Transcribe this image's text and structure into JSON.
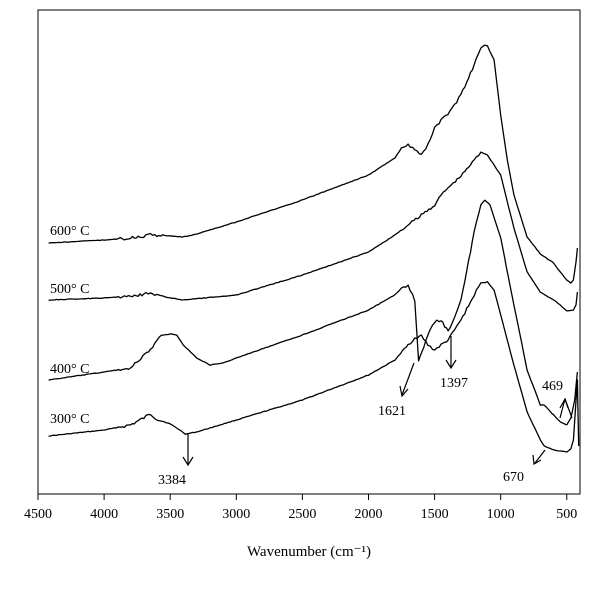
{
  "chart_data": {
    "type": "line",
    "title": "",
    "xlabel": "Wavenumber (cm⁻¹)",
    "ylabel": "",
    "xlim": [
      4500,
      400
    ],
    "x_reversed": true,
    "x_ticks": [
      4500,
      4000,
      3500,
      3000,
      2500,
      2000,
      1500,
      1000,
      500
    ],
    "x_tick_labels": [
      "4500",
      "4000",
      "3500",
      "3000",
      "2500",
      "2000",
      "1500",
      "1000",
      "500"
    ],
    "y_ticks_shown": false,
    "grid": false,
    "legend": "inline labels at left",
    "series": [
      {
        "name": "300° C",
        "points": [
          [
            4420,
            436
          ],
          [
            4000,
            430
          ],
          [
            3800,
            425
          ],
          [
            3700,
            418
          ],
          [
            3650,
            414
          ],
          [
            3600,
            419
          ],
          [
            3500,
            424
          ],
          [
            3450,
            428
          ],
          [
            3384,
            434
          ],
          [
            3300,
            432
          ],
          [
            3000,
            420
          ],
          [
            2500,
            400
          ],
          [
            2000,
            375
          ],
          [
            1800,
            360
          ],
          [
            1700,
            345
          ],
          [
            1650,
            338
          ],
          [
            1600,
            336
          ],
          [
            1550,
            345
          ],
          [
            1500,
            350
          ],
          [
            1450,
            345
          ],
          [
            1397,
            340
          ],
          [
            1300,
            320
          ],
          [
            1200,
            295
          ],
          [
            1150,
            283
          ],
          [
            1100,
            282
          ],
          [
            1050,
            290
          ],
          [
            1000,
            315
          ],
          [
            900,
            365
          ],
          [
            800,
            412
          ],
          [
            700,
            440
          ],
          [
            670,
            446
          ],
          [
            600,
            450
          ],
          [
            550,
            451
          ],
          [
            500,
            452
          ],
          [
            469,
            449
          ],
          [
            450,
            440
          ],
          [
            420,
            380
          ],
          [
            410,
            446
          ]
        ]
      },
      {
        "name": "400° C",
        "points": [
          [
            4420,
            380
          ],
          [
            4000,
            372
          ],
          [
            3800,
            368
          ],
          [
            3750,
            362
          ],
          [
            3650,
            350
          ],
          [
            3600,
            340
          ],
          [
            3550,
            335
          ],
          [
            3500,
            334
          ],
          [
            3450,
            335
          ],
          [
            3400,
            345
          ],
          [
            3300,
            358
          ],
          [
            3200,
            365
          ],
          [
            3100,
            363
          ],
          [
            3000,
            358
          ],
          [
            2500,
            335
          ],
          [
            2000,
            310
          ],
          [
            1800,
            295
          ],
          [
            1750,
            288
          ],
          [
            1700,
            285
          ],
          [
            1650,
            300
          ],
          [
            1621,
            362
          ],
          [
            1600,
            353
          ],
          [
            1550,
            335
          ],
          [
            1500,
            322
          ],
          [
            1450,
            320
          ],
          [
            1397,
            332
          ],
          [
            1300,
            300
          ],
          [
            1200,
            232
          ],
          [
            1150,
            205
          ],
          [
            1120,
            200
          ],
          [
            1080,
            205
          ],
          [
            1000,
            238
          ],
          [
            900,
            305
          ],
          [
            800,
            370
          ],
          [
            700,
            405
          ],
          [
            670,
            405
          ],
          [
            600,
            415
          ],
          [
            550,
            422
          ],
          [
            500,
            425
          ],
          [
            469,
            418
          ],
          [
            440,
            400
          ],
          [
            420,
            372
          ]
        ]
      },
      {
        "name": "500° C",
        "points": [
          [
            4420,
            300
          ],
          [
            4000,
            298
          ],
          [
            3800,
            296
          ],
          [
            3700,
            294
          ],
          [
            3650,
            292
          ],
          [
            3600,
            295
          ],
          [
            3500,
            298
          ],
          [
            3400,
            300
          ],
          [
            3000,
            295
          ],
          [
            2500,
            275
          ],
          [
            2000,
            252
          ],
          [
            1800,
            235
          ],
          [
            1700,
            225
          ],
          [
            1600,
            215
          ],
          [
            1500,
            205
          ],
          [
            1450,
            195
          ],
          [
            1400,
            188
          ],
          [
            1300,
            176
          ],
          [
            1200,
            160
          ],
          [
            1150,
            152
          ],
          [
            1100,
            155
          ],
          [
            1000,
            175
          ],
          [
            900,
            228
          ],
          [
            800,
            272
          ],
          [
            700,
            292
          ],
          [
            600,
            300
          ],
          [
            550,
            305
          ],
          [
            500,
            311
          ],
          [
            450,
            310
          ],
          [
            430,
            305
          ],
          [
            420,
            292
          ]
        ]
      },
      {
        "name": "600° C",
        "points": [
          [
            4420,
            243
          ],
          [
            4000,
            240
          ],
          [
            3800,
            238
          ],
          [
            3700,
            236
          ],
          [
            3650,
            234
          ],
          [
            3600,
            235
          ],
          [
            3500,
            236
          ],
          [
            3400,
            237
          ],
          [
            3300,
            234
          ],
          [
            3000,
            222
          ],
          [
            2500,
            200
          ],
          [
            2000,
            175
          ],
          [
            1800,
            158
          ],
          [
            1750,
            148
          ],
          [
            1700,
            145
          ],
          [
            1650,
            150
          ],
          [
            1600,
            155
          ],
          [
            1550,
            145
          ],
          [
            1500,
            128
          ],
          [
            1450,
            120
          ],
          [
            1400,
            115
          ],
          [
            1350,
            105
          ],
          [
            1300,
            95
          ],
          [
            1200,
            65
          ],
          [
            1150,
            48
          ],
          [
            1120,
            45
          ],
          [
            1100,
            46
          ],
          [
            1050,
            60
          ],
          [
            1000,
            115
          ],
          [
            950,
            160
          ],
          [
            900,
            195
          ],
          [
            800,
            237
          ],
          [
            700,
            254
          ],
          [
            600,
            263
          ],
          [
            550,
            272
          ],
          [
            500,
            280
          ],
          [
            470,
            283
          ],
          [
            450,
            280
          ],
          [
            430,
            262
          ],
          [
            420,
            248
          ]
        ]
      }
    ],
    "annotations": [
      {
        "text": "3384",
        "x": 3384
      },
      {
        "text": "1621",
        "x": 1621
      },
      {
        "text": "1397",
        "x": 1397
      },
      {
        "text": "670",
        "x": 670
      },
      {
        "text": "469",
        "x": 469
      }
    ]
  }
}
